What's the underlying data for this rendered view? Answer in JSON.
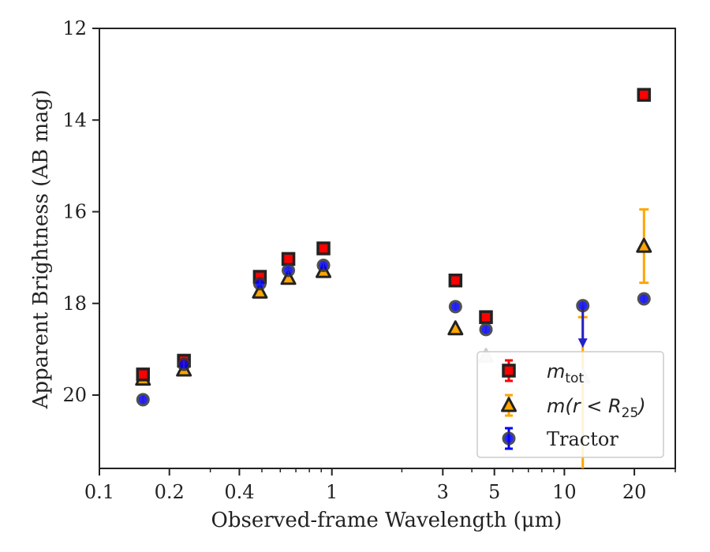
{
  "chart_data": {
    "type": "scatter",
    "title": "",
    "xlabel": "Observed-frame Wavelength (μm)",
    "ylabel": "Apparent Brightness (AB mag)",
    "xscale": "log",
    "xlim": [
      0.1,
      30
    ],
    "ylim": [
      21.6,
      12
    ],
    "y_inverted": true,
    "x_ticks": [
      0.1,
      0.2,
      0.4,
      1,
      3,
      5,
      10,
      20
    ],
    "x_tick_labels": [
      "0.1",
      "0.2",
      "0.4",
      "1",
      "3",
      "5",
      "10",
      "20"
    ],
    "y_ticks": [
      12,
      14,
      16,
      18,
      20
    ],
    "y_tick_labels": [
      "12",
      "14",
      "16",
      "18",
      "20"
    ],
    "grid": false,
    "legend_position": "lower-right",
    "legend": [
      {
        "name": "m_tot",
        "label_main": "m",
        "label_sub": "tot",
        "series": 0
      },
      {
        "name": "m(r<R25)",
        "label_main": "m(r < R",
        "label_sub": "25",
        "label_tail": ")",
        "series": 1
      },
      {
        "name": "Tractor",
        "label_main": "Tractor",
        "series": 2
      }
    ],
    "series": [
      {
        "name": "m_tot",
        "marker": "square",
        "color": "#ff0000",
        "edge_color": "#222222",
        "points": [
          {
            "x": 0.154,
            "y": 19.55
          },
          {
            "x": 0.231,
            "y": 19.25
          },
          {
            "x": 0.49,
            "y": 17.42
          },
          {
            "x": 0.65,
            "y": 17.03
          },
          {
            "x": 0.92,
            "y": 16.8
          },
          {
            "x": 3.4,
            "y": 17.5
          },
          {
            "x": 4.6,
            "y": 18.3
          },
          {
            "x": 22.0,
            "y": 13.45
          }
        ]
      },
      {
        "name": "m(r<R25)",
        "marker": "triangle",
        "color": "#ffa500",
        "edge_color": "#222222",
        "points": [
          {
            "x": 0.154,
            "y": 19.65
          },
          {
            "x": 0.231,
            "y": 19.45
          },
          {
            "x": 0.49,
            "y": 17.75
          },
          {
            "x": 0.65,
            "y": 17.45
          },
          {
            "x": 0.92,
            "y": 17.3
          },
          {
            "x": 3.4,
            "y": 18.55
          },
          {
            "x": 4.6,
            "y": 19.15,
            "faded": true
          },
          {
            "x": 12.0,
            "y": 19.6,
            "faded": true,
            "err": [
              18.3,
              21.6
            ]
          },
          {
            "x": 22.0,
            "y": 16.75,
            "err": [
              15.95,
              17.55
            ]
          }
        ]
      },
      {
        "name": "Tractor",
        "marker": "circle",
        "color": "#0000ff",
        "edge_color": "#333333",
        "points": [
          {
            "x": 0.154,
            "y": 20.1
          },
          {
            "x": 0.231,
            "y": 19.33
          },
          {
            "x": 0.49,
            "y": 17.57
          },
          {
            "x": 0.65,
            "y": 17.28
          },
          {
            "x": 0.92,
            "y": 17.17
          },
          {
            "x": 3.4,
            "y": 18.07
          },
          {
            "x": 4.6,
            "y": 18.57
          },
          {
            "x": 12.0,
            "y": 18.05,
            "upper_limit_to": 18.9
          },
          {
            "x": 22.0,
            "y": 17.9
          }
        ]
      }
    ]
  }
}
